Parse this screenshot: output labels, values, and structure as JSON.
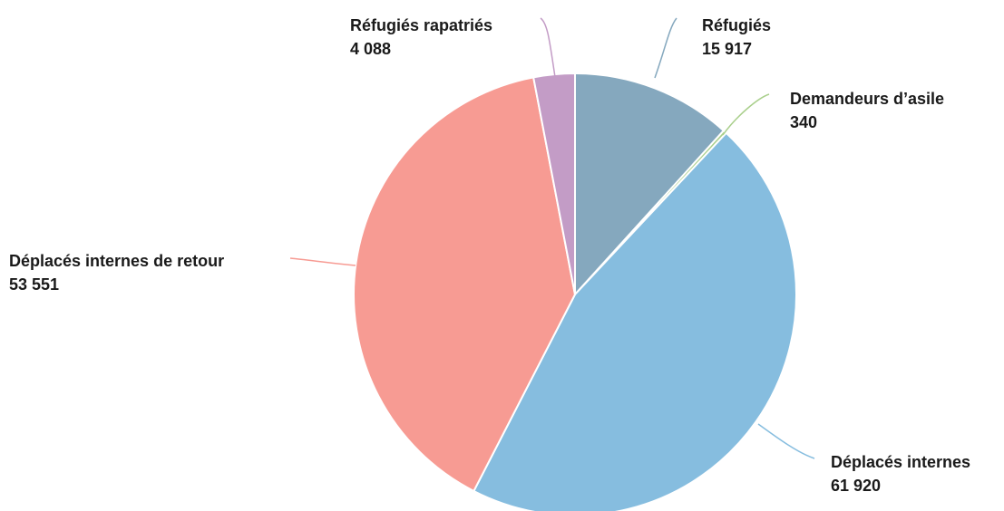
{
  "chart_data": {
    "type": "pie",
    "title": "",
    "start_angle_deg": 0,
    "direction": "clockwise",
    "slices": [
      {
        "label": "Réfugiés",
        "value": 15917,
        "value_text": "15 917",
        "color": "#85A8BE"
      },
      {
        "label": "Demandeurs d’asile",
        "value": 340,
        "value_text": "340",
        "color": "#A9CF8B"
      },
      {
        "label": "Déplacés internes",
        "value": 61920,
        "value_text": "61 920",
        "color": "#86BDDF"
      },
      {
        "label": "Déplacés internes de retour",
        "value": 53551,
        "value_text": "53 551",
        "color": "#F79B93"
      },
      {
        "label": "Réfugiés rapatriés",
        "value": 4088,
        "value_text": "4 088",
        "color": "#C39CC6"
      }
    ]
  }
}
